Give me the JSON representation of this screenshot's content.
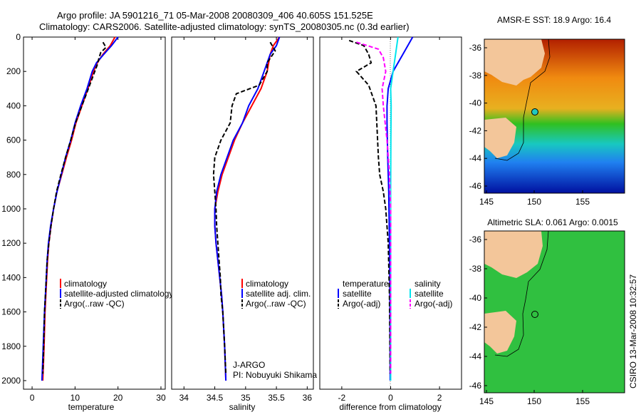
{
  "header": {
    "line1": "Argo profile: JA 5901216_71 05-Mar-2008 20080309_406 40.605S 151.525E",
    "line2": "Climatology: CARS2006. Satellite-adjusted climatology: synTS_20080305.nc (0.3d earlier)"
  },
  "colors": {
    "clim": "#ff0000",
    "sat": "#0000ff",
    "argo": "#000000",
    "sat_s": "#00e5ee",
    "argo_s": "#ff00ff"
  },
  "chart_data": [
    {
      "id": "temperature",
      "type": "line",
      "xlabel": "temperature",
      "ylabel": "",
      "xlim": [
        -2,
        31
      ],
      "ylim": [
        2050,
        0
      ],
      "xticks": [
        0,
        10,
        20,
        30
      ],
      "yticks": [
        0,
        200,
        400,
        600,
        800,
        1000,
        1200,
        1400,
        1600,
        1800,
        2000
      ],
      "legend": [
        "climatology",
        "satellite-adjusted climatology",
        "Argo(..raw -QC)"
      ],
      "series": [
        {
          "name": "climatology",
          "color": "#ff0000",
          "style": "solid",
          "points": [
            [
              19.3,
              0
            ],
            [
              18.2,
              50
            ],
            [
              16.5,
              100
            ],
            [
              15.2,
              150
            ],
            [
              14.3,
              200
            ],
            [
              13.0,
              300
            ],
            [
              11.6,
              400
            ],
            [
              10.2,
              500
            ],
            [
              9.2,
              600
            ],
            [
              8.0,
              700
            ],
            [
              6.9,
              800
            ],
            [
              5.8,
              900
            ],
            [
              5.0,
              1000
            ],
            [
              4.4,
              1100
            ],
            [
              3.9,
              1200
            ],
            [
              3.6,
              1300
            ],
            [
              3.4,
              1400
            ],
            [
              3.2,
              1500
            ],
            [
              3.0,
              1600
            ],
            [
              2.8,
              1800
            ],
            [
              2.5,
              2000
            ]
          ]
        },
        {
          "name": "satellite-adjusted climatology",
          "color": "#0000ff",
          "style": "solid",
          "points": [
            [
              20.0,
              0
            ],
            [
              18.5,
              50
            ],
            [
              16.7,
              100
            ],
            [
              15.0,
              150
            ],
            [
              14.0,
              200
            ],
            [
              12.8,
              300
            ],
            [
              11.3,
              400
            ],
            [
              10.0,
              500
            ],
            [
              9.0,
              600
            ],
            [
              7.8,
              700
            ],
            [
              6.8,
              800
            ],
            [
              5.8,
              900
            ],
            [
              5.0,
              1000
            ],
            [
              4.3,
              1100
            ],
            [
              3.8,
              1200
            ],
            [
              3.5,
              1300
            ],
            [
              3.3,
              1400
            ],
            [
              3.1,
              1500
            ],
            [
              2.9,
              1600
            ],
            [
              2.6,
              1800
            ],
            [
              2.3,
              2000
            ]
          ]
        },
        {
          "name": "Argo(..raw -QC)",
          "color": "#000000",
          "style": "dashed",
          "points": [
            [
              16.5,
              30
            ],
            [
              17.2,
              60
            ],
            [
              16.0,
              90
            ],
            [
              15.6,
              120
            ],
            [
              15.2,
              160
            ],
            [
              14.6,
              200
            ],
            [
              13.1,
              300
            ],
            [
              11.6,
              400
            ],
            [
              10.1,
              500
            ],
            [
              9.0,
              600
            ],
            [
              7.8,
              700
            ],
            [
              6.7,
              800
            ],
            [
              5.7,
              900
            ],
            [
              5.0,
              1000
            ],
            [
              4.4,
              1100
            ],
            [
              3.9,
              1200
            ],
            [
              3.5,
              1300
            ],
            [
              3.3,
              1400
            ],
            [
              3.1,
              1500
            ],
            [
              2.9,
              1600
            ],
            [
              2.7,
              1800
            ],
            [
              2.5,
              1960
            ]
          ]
        }
      ]
    },
    {
      "id": "salinity",
      "type": "line",
      "xlabel": "salinity",
      "ylabel": "",
      "xlim": [
        33.8,
        36.1
      ],
      "ylim": [
        2050,
        0
      ],
      "xticks": [
        34,
        34.5,
        35,
        35.5,
        36
      ],
      "legend": [
        "climatology",
        "satellite adj. clim.",
        "Argo(..raw -QC)"
      ],
      "annotation": [
        "J-ARGO",
        "PI: Nobuyuki Shikama"
      ],
      "series": [
        {
          "name": "climatology",
          "color": "#ff0000",
          "style": "solid",
          "points": [
            [
              35.55,
              0
            ],
            [
              35.45,
              50
            ],
            [
              35.4,
              100
            ],
            [
              35.35,
              200
            ],
            [
              35.25,
              300
            ],
            [
              35.1,
              400
            ],
            [
              34.95,
              500
            ],
            [
              34.82,
              600
            ],
            [
              34.72,
              700
            ],
            [
              34.62,
              800
            ],
            [
              34.55,
              900
            ],
            [
              34.5,
              1000
            ],
            [
              34.5,
              1100
            ],
            [
              34.52,
              1200
            ],
            [
              34.55,
              1300
            ],
            [
              34.58,
              1400
            ],
            [
              34.61,
              1500
            ],
            [
              34.63,
              1600
            ],
            [
              34.66,
              1800
            ],
            [
              34.68,
              2000
            ]
          ]
        },
        {
          "name": "satellite adj. clim.",
          "color": "#0000ff",
          "style": "solid",
          "points": [
            [
              35.55,
              0
            ],
            [
              35.5,
              50
            ],
            [
              35.4,
              100
            ],
            [
              35.3,
              200
            ],
            [
              35.2,
              300
            ],
            [
              35.05,
              400
            ],
            [
              34.95,
              500
            ],
            [
              34.8,
              600
            ],
            [
              34.7,
              700
            ],
            [
              34.6,
              800
            ],
            [
              34.53,
              900
            ],
            [
              34.5,
              1000
            ],
            [
              34.5,
              1100
            ],
            [
              34.52,
              1200
            ],
            [
              34.55,
              1300
            ],
            [
              34.58,
              1400
            ],
            [
              34.61,
              1500
            ],
            [
              34.63,
              1600
            ],
            [
              34.66,
              1800
            ],
            [
              34.68,
              2000
            ]
          ]
        },
        {
          "name": "Argo(..raw -QC)",
          "color": "#000000",
          "style": "dashed",
          "points": [
            [
              35.4,
              30
            ],
            [
              35.48,
              80
            ],
            [
              35.35,
              150
            ],
            [
              35.35,
              200
            ],
            [
              35.22,
              280
            ],
            [
              34.85,
              330
            ],
            [
              34.78,
              400
            ],
            [
              34.75,
              500
            ],
            [
              34.6,
              600
            ],
            [
              34.5,
              700
            ],
            [
              34.48,
              800
            ],
            [
              34.5,
              900
            ],
            [
              34.52,
              1000
            ],
            [
              34.53,
              1100
            ],
            [
              34.55,
              1200
            ],
            [
              34.57,
              1300
            ],
            [
              34.59,
              1400
            ],
            [
              34.6,
              1500
            ],
            [
              34.63,
              1600
            ],
            [
              34.66,
              1800
            ],
            [
              34.68,
              1960
            ]
          ]
        }
      ]
    },
    {
      "id": "difference",
      "type": "line",
      "xlabel": "difference from climatology",
      "ylabel": "",
      "xlim": [
        -2.9,
        2.9
      ],
      "ylim": [
        2050,
        0
      ],
      "xticks": [
        -2,
        0,
        2
      ],
      "legend_left_title": "temperature",
      "legend_right_title": "salinity",
      "legend_left": [
        "satellite",
        "Argo(-adj)"
      ],
      "legend_right": [
        "satellite",
        "Argo(-adj)"
      ],
      "series": [
        {
          "name": "temperature satellite",
          "color": "#0000ff",
          "style": "solid",
          "points": [
            [
              0.9,
              0
            ],
            [
              0.5,
              100
            ],
            [
              0.1,
              200
            ],
            [
              -0.1,
              300
            ],
            [
              -0.15,
              400
            ],
            [
              -0.15,
              500
            ],
            [
              -0.12,
              700
            ],
            [
              -0.08,
              900
            ],
            [
              -0.05,
              1200
            ],
            [
              -0.03,
              1600
            ],
            [
              -0.02,
              2000
            ]
          ]
        },
        {
          "name": "temperature Argo(-adj)",
          "color": "#000000",
          "style": "dashed",
          "points": [
            [
              -1.7,
              20
            ],
            [
              -1.1,
              50
            ],
            [
              -0.9,
              100
            ],
            [
              -0.8,
              150
            ],
            [
              -1.4,
              200
            ],
            [
              -0.9,
              280
            ],
            [
              -0.6,
              400
            ],
            [
              -0.55,
              550
            ],
            [
              -0.5,
              700
            ],
            [
              -0.45,
              800
            ],
            [
              -0.3,
              900
            ],
            [
              -0.2,
              1000
            ],
            [
              -0.1,
              1200
            ],
            [
              -0.05,
              1500
            ],
            [
              -0.02,
              1960
            ]
          ]
        },
        {
          "name": "salinity satellite",
          "color": "#00e5ee",
          "style": "solid",
          "points": [
            [
              0.3,
              0
            ],
            [
              0.25,
              50
            ],
            [
              0.2,
              100
            ],
            [
              0.1,
              200
            ],
            [
              0.0,
              300
            ],
            [
              0.02,
              400
            ],
            [
              0.01,
              600
            ],
            [
              0.0,
              900
            ],
            [
              0.0,
              2000
            ]
          ]
        },
        {
          "name": "salinity Argo(-adj)",
          "color": "#ff00ff",
          "style": "dashed",
          "points": [
            [
              -1.4,
              30
            ],
            [
              -0.5,
              70
            ],
            [
              -0.3,
              120
            ],
            [
              -0.2,
              200
            ],
            [
              -0.35,
              300
            ],
            [
              -0.3,
              400
            ],
            [
              -0.15,
              600
            ],
            [
              -0.05,
              800
            ],
            [
              0.0,
              1000
            ],
            [
              0.0,
              1960
            ]
          ]
        }
      ]
    }
  ],
  "map_sst": {
    "title": "AMSR-E SST: 18.9 Argo: 16.4",
    "xticks": [
      "145",
      "150",
      "155"
    ],
    "yticks": [
      "-36",
      "-38",
      "-40",
      "-42",
      "-44",
      "-46"
    ]
  },
  "map_sla": {
    "title": "Altimetric SLA: 0.061 Argo: 0.0015",
    "xticks": [
      "145",
      "150",
      "155"
    ],
    "yticks": [
      "-36",
      "-38",
      "-40",
      "-42",
      "-44",
      "-46"
    ]
  },
  "side_stamp": "CSIRO 13-Mar-2008 10:32:57"
}
